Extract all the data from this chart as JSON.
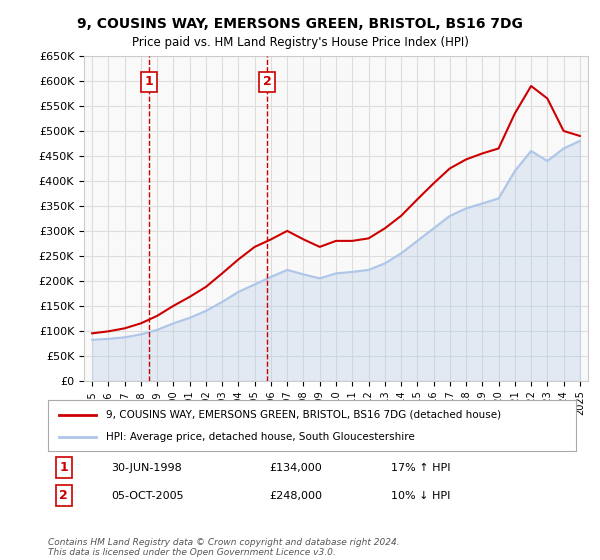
{
  "title": "9, COUSINS WAY, EMERSONS GREEN, BRISTOL, BS16 7DG",
  "subtitle": "Price paid vs. HM Land Registry's House Price Index (HPI)",
  "legend_line1": "9, COUSINS WAY, EMERSONS GREEN, BRISTOL, BS16 7DG (detached house)",
  "legend_line2": "HPI: Average price, detached house, South Gloucestershire",
  "footer": "Contains HM Land Registry data © Crown copyright and database right 2024.\nThis data is licensed under the Open Government Licence v3.0.",
  "transactions": [
    {
      "label": "1",
      "date": "30-JUN-1998",
      "price": 134000,
      "hpi_rel": "17% ↑ HPI",
      "year": 1998.5
    },
    {
      "label": "2",
      "date": "05-OCT-2005",
      "price": 248000,
      "hpi_rel": "10% ↓ HPI",
      "year": 2005.75
    }
  ],
  "hpi_years": [
    1995,
    1996,
    1997,
    1998,
    1999,
    2000,
    2001,
    2002,
    2003,
    2004,
    2005,
    2006,
    2007,
    2008,
    2009,
    2010,
    2011,
    2012,
    2013,
    2014,
    2015,
    2016,
    2017,
    2018,
    2019,
    2020,
    2021,
    2022,
    2023,
    2024,
    2025
  ],
  "hpi_values": [
    82000,
    84000,
    87000,
    93000,
    102000,
    115000,
    126000,
    140000,
    158000,
    178000,
    193000,
    208000,
    222000,
    213000,
    205000,
    215000,
    218000,
    222000,
    235000,
    255000,
    280000,
    305000,
    330000,
    345000,
    355000,
    365000,
    420000,
    460000,
    440000,
    465000,
    480000
  ],
  "red_line_years": [
    1995,
    1996,
    1997,
    1998,
    1999,
    2000,
    2001,
    2002,
    2003,
    2004,
    2005,
    2006,
    2007,
    2008,
    2009,
    2010,
    2011,
    2012,
    2013,
    2014,
    2015,
    2016,
    2017,
    2018,
    2019,
    2020,
    2021,
    2022,
    2023,
    2024,
    2025
  ],
  "red_line_values": [
    95000,
    99000,
    105000,
    115000,
    130000,
    150000,
    168000,
    188000,
    215000,
    243000,
    268000,
    283000,
    300000,
    283000,
    268000,
    280000,
    280000,
    285000,
    305000,
    330000,
    363000,
    395000,
    425000,
    443000,
    455000,
    465000,
    535000,
    590000,
    565000,
    500000,
    490000
  ],
  "ylim": [
    0,
    650000
  ],
  "ytick_step": 50000,
  "xlim_start": 1994.5,
  "xlim_end": 2025.5,
  "grid_color": "#dddddd",
  "hpi_color": "#aec6e8",
  "red_color": "#cc0000",
  "background_color": "#f9f9f9",
  "marker1_color": "#cc0000",
  "marker2_color": "#cc0000",
  "dashed_line_color": "#cc0000"
}
